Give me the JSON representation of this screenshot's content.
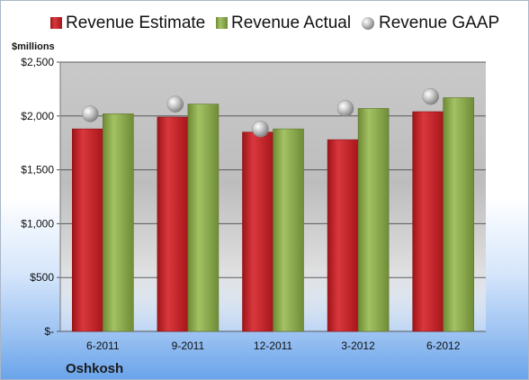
{
  "company": "Oshkosh",
  "colors": {
    "estimate": "#c8242a",
    "actual": "#8fae4f",
    "gaap": "#b9b9b9"
  },
  "chart_data": {
    "type": "bar",
    "unit_label": "$millions",
    "categories": [
      "6-2011",
      "9-2011",
      "12-2011",
      "3-2012",
      "6-2012"
    ],
    "series": [
      {
        "name": "Revenue Estimate",
        "kind": "bar",
        "values": [
          1880,
          1990,
          1850,
          1780,
          2040
        ]
      },
      {
        "name": "Revenue Actual",
        "kind": "bar",
        "values": [
          2020,
          2110,
          1880,
          2070,
          2170
        ]
      },
      {
        "name": "Revenue GAAP",
        "kind": "marker",
        "values": [
          2020,
          2110,
          1880,
          2070,
          2180
        ]
      }
    ],
    "ylim": [
      0,
      2500
    ],
    "yticks": [
      0,
      500,
      1000,
      1500,
      2000,
      2500
    ],
    "ytick_labels": [
      "$-",
      "$500",
      "$1,000",
      "$1,500",
      "$2,000",
      "$2,500"
    ],
    "grid": true,
    "legend": "top"
  }
}
